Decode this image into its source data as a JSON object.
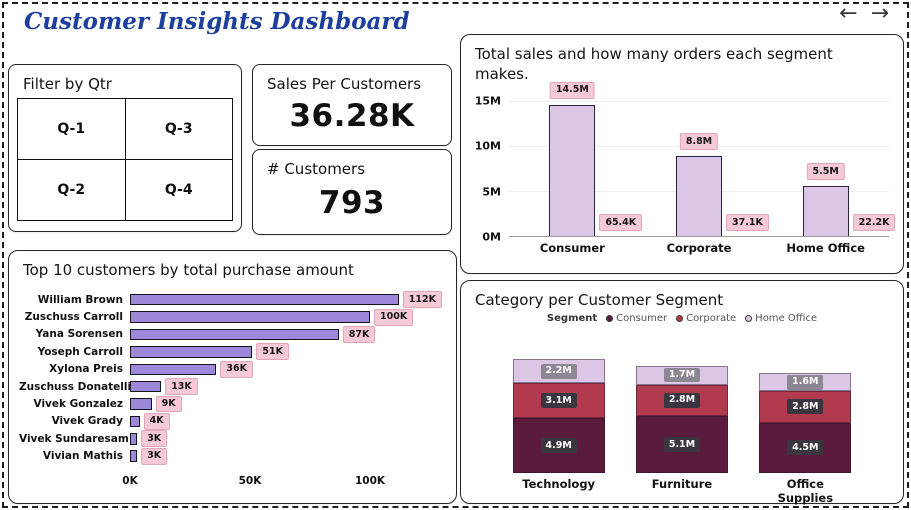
{
  "header": {
    "title": "Customer Insights Dashboard",
    "back_icon": "←",
    "forward_icon": "→"
  },
  "filter": {
    "title": "Filter by Qtr",
    "buttons": [
      "Q-1",
      "Q-3",
      "Q-2",
      "Q-4"
    ]
  },
  "kpis": {
    "sales": {
      "label": "Sales Per Customers",
      "value": "36.28K"
    },
    "customers": {
      "label": "# Customers",
      "value": "793"
    }
  },
  "chart_data": [
    {
      "type": "bar",
      "title": "Total sales and how many orders each segment makes.",
      "categories": [
        "Consumer",
        "Corporate",
        "Home Office"
      ],
      "values": [
        14.5,
        8.8,
        5.5
      ],
      "value_labels": [
        "14.5M",
        "8.8M",
        "5.5M"
      ],
      "order_labels": [
        "65.4K",
        "37.1K",
        "22.2K"
      ],
      "y_ticks": [
        "15M",
        "10M",
        "5M",
        "0M"
      ],
      "ylim": [
        0,
        15
      ],
      "bar_color": "#dcc6e6",
      "legend_position": "none",
      "grid": true
    },
    {
      "type": "bar",
      "orientation": "horizontal",
      "title": "Top 10 customers by total purchase amount",
      "categories": [
        "William Brown",
        "Zuschuss Carroll",
        "Yana Sorensen",
        "Yoseph Carroll",
        "Xylona Preis",
        "Zuschuss Donatelli",
        "Vivek Gonzalez",
        "Vivek Grady",
        "Vivek Sundaresam",
        "Vivian Mathis"
      ],
      "values": [
        112,
        100,
        87,
        51,
        36,
        13,
        9,
        4,
        3,
        3
      ],
      "value_labels": [
        "112K",
        "100K",
        "87K",
        "51K",
        "36K",
        "13K",
        "9K",
        "4K",
        "3K",
        "3K"
      ],
      "x_ticks": [
        "0K",
        "50K",
        "100K"
      ],
      "x_tick_values": [
        0,
        50,
        100
      ],
      "xlim": [
        0,
        131
      ],
      "bar_color": "#9d87d8",
      "legend_position": "none",
      "grid": false
    },
    {
      "type": "stacked-bar",
      "title": "Category per Customer Segment",
      "legend_title": "Segment",
      "legend_position": "top",
      "categories": [
        "Technology",
        "Furniture",
        "Office Supplies"
      ],
      "series": [
        {
          "name": "Consumer",
          "color": "#5a1b3c",
          "label_bg": "#3a3640",
          "values": [
            4.9,
            5.1,
            4.5
          ],
          "labels": [
            "4.9M",
            "5.1M",
            "4.5M"
          ]
        },
        {
          "name": "Corporate",
          "color": "#b23a4e",
          "label_bg": "#3a3640",
          "values": [
            3.1,
            2.8,
            2.8
          ],
          "labels": [
            "3.1M",
            "2.8M",
            "2.8M"
          ]
        },
        {
          "name": "Home Office",
          "color": "#dcc6e6",
          "label_bg": "#8b8793",
          "values": [
            2.2,
            1.7,
            1.6
          ],
          "labels": [
            "2.2M",
            "1.7M",
            "1.6M"
          ]
        }
      ],
      "totals": [
        10.2,
        9.6,
        8.9
      ]
    }
  ],
  "colors": {
    "title_blue": "#1d3f9e",
    "chip_pink": "#f6c9d7",
    "bar_lavender": "#dcc6e6",
    "bar_purple": "#9d87d8",
    "consumer": "#5a1b3c",
    "corporate": "#b23a4e",
    "home_office": "#dcc6e6",
    "panel_border": "#262626"
  }
}
